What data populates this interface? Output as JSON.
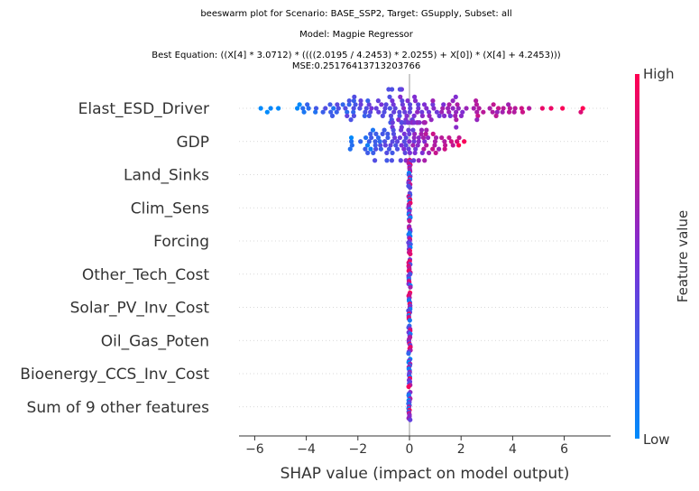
{
  "chart_data": {
    "type": "scatter",
    "subtype": "beeswarm",
    "title_lines": [
      "beeswarm plot for Scenario: BASE_SSP2, Target: GSupply, Subset: all",
      "Model: Magpie Regressor",
      "Best Equation: ((X[4] * 3.0712) * ((((2.0195 / 4.2453) * 2.0255) + X[0]) * (X[4] + 4.2453)))",
      "MSE:0.25176413713203766"
    ],
    "xlabel": "SHAP value (impact on model output)",
    "xlim": [
      -6.5,
      7.7
    ],
    "xticks": [
      -6,
      -4,
      -2,
      0,
      2,
      4,
      6
    ],
    "grid": "horizontal dotted lines per feature",
    "colorbar": {
      "label": "Feature value",
      "high_label": "High",
      "low_label": "Low",
      "low_color": "#008afb",
      "mid_color": "#7c2fd6",
      "high_color": "#ff0052"
    },
    "features": [
      {
        "name": "Elast_ESD_Driver",
        "range": [
          -6.0,
          7.0
        ]
      },
      {
        "name": "GDP",
        "range": [
          -2.4,
          2.5
        ]
      },
      {
        "name": "Land_Sinks",
        "range": [
          -0.04,
          0.04
        ]
      },
      {
        "name": "Clim_Sens",
        "range": [
          -0.04,
          0.04
        ]
      },
      {
        "name": "Forcing",
        "range": [
          -0.04,
          0.04
        ]
      },
      {
        "name": "Other_Tech_Cost",
        "range": [
          -0.04,
          0.04
        ]
      },
      {
        "name": "Solar_PV_Inv_Cost",
        "range": [
          -0.04,
          0.04
        ]
      },
      {
        "name": "Oil_Gas_Poten",
        "range": [
          -0.04,
          0.04
        ]
      },
      {
        "name": "Bioenergy_CCS_Inv_Cost",
        "range": [
          -0.04,
          0.04
        ]
      },
      {
        "name": "Sum of 9 other features",
        "range": [
          -0.04,
          0.04
        ]
      }
    ]
  }
}
